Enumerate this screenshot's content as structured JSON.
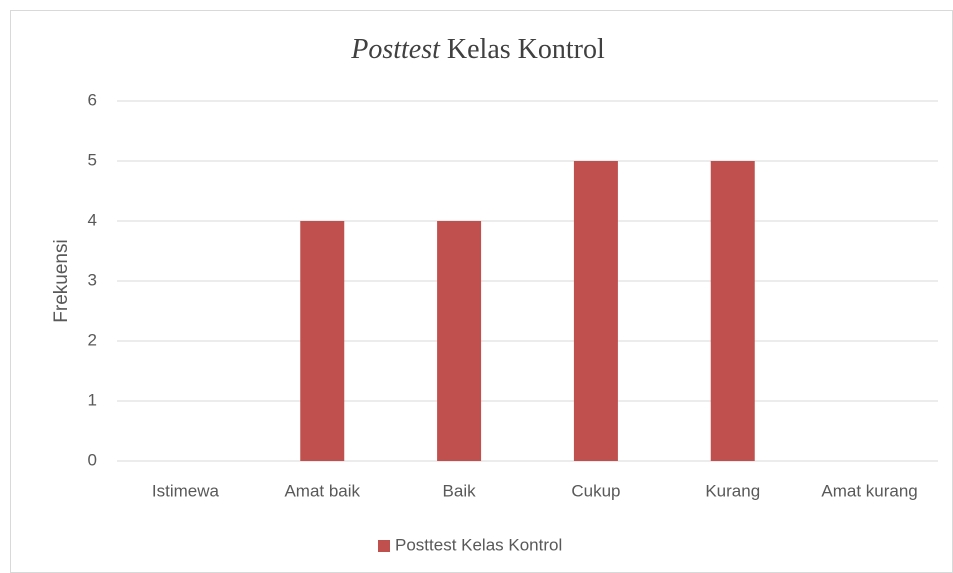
{
  "chart_data": {
    "type": "bar",
    "title": [
      "Posttest",
      "Kelas Kontrol"
    ],
    "y_label": "Frekuensi",
    "categories": [
      "Istimewa",
      "Amat baik",
      "Baik",
      "Cukup",
      "Kurang",
      "Amat kurang"
    ],
    "series": [
      {
        "name": "Posttest Kelas Kontrol",
        "color": "#c0504d",
        "values": [
          0,
          4,
          4,
          5,
          5,
          0
        ]
      }
    ],
    "ylim": [
      0,
      6
    ],
    "yticks": [
      0,
      1,
      2,
      3,
      4,
      5,
      6
    ],
    "grid": true,
    "legend": "bottom"
  }
}
